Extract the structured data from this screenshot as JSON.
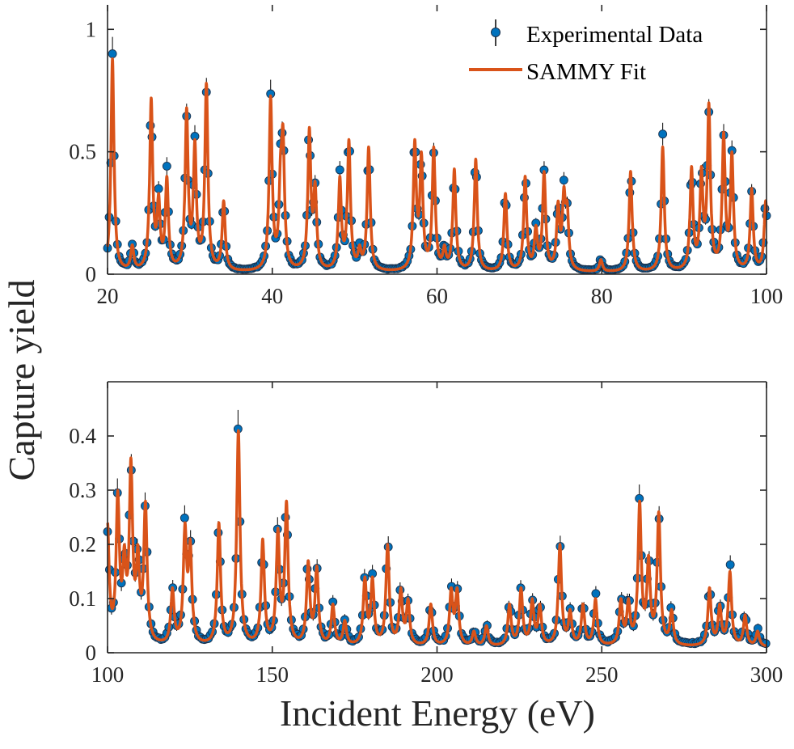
{
  "chart_data": [
    {
      "type": "scatter+line",
      "xlabel": "Incident Energy (eV)",
      "ylabel": "Capture yield",
      "xlim": [
        20,
        100
      ],
      "ylim": [
        0,
        1.1
      ],
      "xticks": [
        "20",
        "40",
        "60",
        "80",
        "100"
      ],
      "yticks": [
        "0",
        "0.5",
        "1"
      ],
      "grid": false,
      "legend": {
        "placement": "top-right",
        "entries": [
          "Experimental Data",
          "SAMMY Fit"
        ]
      },
      "colors": {
        "Experimental Data": "#0072BD",
        "SAMMY Fit": "#D95319",
        "error_bar": "#000000"
      },
      "resonance_peaks": [
        [
          20.6,
          0.88
        ],
        [
          23.0,
          0.12
        ],
        [
          25.3,
          0.72
        ],
        [
          26.2,
          0.33
        ],
        [
          27.2,
          0.4
        ],
        [
          29.6,
          0.68
        ],
        [
          30.6,
          0.55
        ],
        [
          32.0,
          0.78
        ],
        [
          34.1,
          0.3
        ],
        [
          39.8,
          0.73
        ],
        [
          41.0,
          0.5
        ],
        [
          41.3,
          0.62
        ],
        [
          44.5,
          0.6
        ],
        [
          45.2,
          0.38
        ],
        [
          48.2,
          0.4
        ],
        [
          49.3,
          0.55
        ],
        [
          50.6,
          0.12
        ],
        [
          51.7,
          0.52
        ],
        [
          57.3,
          0.55
        ],
        [
          58.1,
          0.5
        ],
        [
          59.6,
          0.52
        ],
        [
          60.9,
          0.12
        ],
        [
          62.1,
          0.43
        ],
        [
          64.7,
          0.47
        ],
        [
          68.3,
          0.33
        ],
        [
          70.7,
          0.4
        ],
        [
          72.0,
          0.2
        ],
        [
          73.0,
          0.42
        ],
        [
          74.7,
          0.3
        ],
        [
          75.4,
          0.36
        ],
        [
          75.8,
          0.3
        ],
        [
          79.9,
          0.06
        ],
        [
          83.5,
          0.42
        ],
        [
          87.4,
          0.52
        ],
        [
          90.9,
          0.44
        ],
        [
          92.1,
          0.44
        ],
        [
          93.0,
          0.7
        ],
        [
          94.8,
          0.58
        ],
        [
          95.8,
          0.5
        ],
        [
          98.2,
          0.35
        ],
        [
          99.9,
          0.3
        ]
      ]
    },
    {
      "type": "scatter+line",
      "xlabel": "Incident Energy (eV)",
      "ylabel": "Capture yield",
      "xlim": [
        100,
        300
      ],
      "ylim": [
        0,
        0.5
      ],
      "xticks": [
        "100",
        "150",
        "200",
        "250",
        "300"
      ],
      "yticks": [
        "0",
        "0.1",
        "0.2",
        "0.3",
        "0.4"
      ],
      "grid": false,
      "colors": {
        "Experimental Data": "#0072BD",
        "SAMMY Fit": "#D95319",
        "error_bar": "#000000"
      },
      "resonance_peaks": [
        [
          100.0,
          0.24
        ],
        [
          103.1,
          0.3
        ],
        [
          105.1,
          0.2
        ],
        [
          107.1,
          0.36
        ],
        [
          109.2,
          0.2
        ],
        [
          111.5,
          0.28
        ],
        [
          119.7,
          0.12
        ],
        [
          123.5,
          0.24
        ],
        [
          125.1,
          0.21
        ],
        [
          133.8,
          0.24
        ],
        [
          139.7,
          0.41
        ],
        [
          147.1,
          0.21
        ],
        [
          151.7,
          0.23
        ],
        [
          154.3,
          0.28
        ],
        [
          160.9,
          0.17
        ],
        [
          163.5,
          0.16
        ],
        [
          168.4,
          0.09
        ],
        [
          172.0,
          0.06
        ],
        [
          178.1,
          0.14
        ],
        [
          180.4,
          0.14
        ],
        [
          185.0,
          0.2
        ],
        [
          189.0,
          0.12
        ],
        [
          191.2,
          0.1
        ],
        [
          198.1,
          0.09
        ],
        [
          204.3,
          0.12
        ],
        [
          206.1,
          0.12
        ],
        [
          211.2,
          0.04
        ],
        [
          215.0,
          0.05
        ],
        [
          222.0,
          0.09
        ],
        [
          225.5,
          0.12
        ],
        [
          228.9,
          0.1
        ],
        [
          231.2,
          0.09
        ],
        [
          237.3,
          0.2
        ],
        [
          240.4,
          0.08
        ],
        [
          244.3,
          0.09
        ],
        [
          248.1,
          0.1
        ],
        [
          255.8,
          0.1
        ],
        [
          258.1,
          0.1
        ],
        [
          261.5,
          0.28
        ],
        [
          264.2,
          0.18
        ],
        [
          267.3,
          0.26
        ],
        [
          271.2,
          0.08
        ],
        [
          282.7,
          0.12
        ],
        [
          285.8,
          0.09
        ],
        [
          288.9,
          0.15
        ],
        [
          293.5,
          0.07
        ],
        [
          297.3,
          0.04
        ]
      ]
    }
  ]
}
